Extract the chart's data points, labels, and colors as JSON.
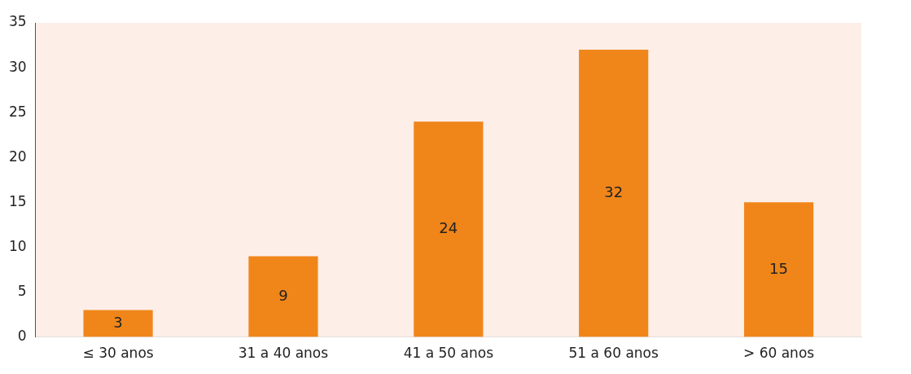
{
  "chart_data": {
    "type": "bar",
    "categories": [
      "≤ 30 anos",
      "31 a 40 anos",
      "41 a 50 anos",
      "51 a 60 anos",
      "> 60 anos"
    ],
    "values": [
      3,
      9,
      24,
      32,
      15
    ],
    "color": "#f0861a",
    "ylim": [
      0,
      35
    ],
    "yticks": [
      0,
      5,
      10,
      15,
      20,
      25,
      30,
      35
    ],
    "grid": false,
    "legend": false,
    "data_labels": true
  }
}
